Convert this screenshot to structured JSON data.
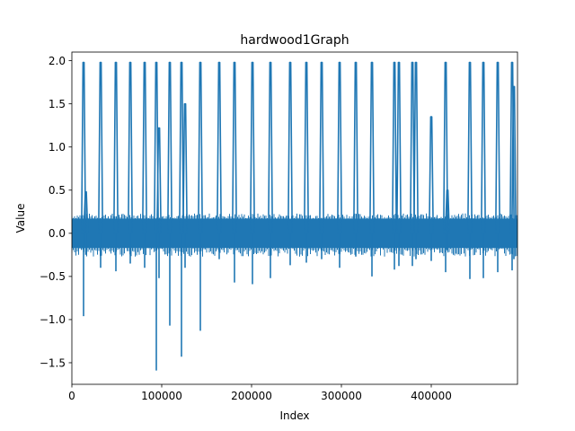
{
  "chart_data": {
    "type": "line",
    "title": "hardwood1Graph",
    "xlabel": "Index",
    "ylabel": "Value",
    "xlim": [
      0,
      496000
    ],
    "ylim": [
      -1.75,
      2.1
    ],
    "grid": false,
    "xticks": [
      {
        "value": 0,
        "label": "0"
      },
      {
        "value": 100000,
        "label": "100000"
      },
      {
        "value": 200000,
        "label": "200000"
      },
      {
        "value": 300000,
        "label": "300000"
      },
      {
        "value": 400000,
        "label": "400000"
      }
    ],
    "yticks": [
      {
        "value": -1.5,
        "label": "−1.5"
      },
      {
        "value": -1.0,
        "label": "−1.0"
      },
      {
        "value": -0.5,
        "label": "−0.5"
      },
      {
        "value": 0.0,
        "label": "0.0"
      },
      {
        "value": 0.5,
        "label": "0.5"
      },
      {
        "value": 1.0,
        "label": "1.0"
      },
      {
        "value": 1.5,
        "label": "1.5"
      },
      {
        "value": 2.0,
        "label": "2.0"
      }
    ],
    "colors": {
      "line": "#1f77b4"
    },
    "baseline_band": {
      "ymin": -0.17,
      "ymax": 0.17
    },
    "spikes": [
      {
        "x": 13000,
        "ymax": 1.98,
        "ymin": -0.96
      },
      {
        "x": 15500,
        "ymax": 0.48,
        "ymin": -0.25
      },
      {
        "x": 32000,
        "ymax": 1.98,
        "ymin": -0.4
      },
      {
        "x": 49000,
        "ymax": 1.98,
        "ymin": -0.44
      },
      {
        "x": 65000,
        "ymax": 1.98,
        "ymin": -0.35
      },
      {
        "x": 81000,
        "ymax": 1.98,
        "ymin": -0.4
      },
      {
        "x": 94000,
        "ymax": 1.98,
        "ymin": -1.59
      },
      {
        "x": 97000,
        "ymax": 1.22,
        "ymin": -0.52
      },
      {
        "x": 109000,
        "ymax": 1.98,
        "ymin": -1.07
      },
      {
        "x": 122000,
        "ymax": 1.98,
        "ymin": -1.43
      },
      {
        "x": 126000,
        "ymax": 1.5,
        "ymin": -0.4
      },
      {
        "x": 143000,
        "ymax": 1.98,
        "ymin": -1.13
      },
      {
        "x": 164000,
        "ymax": 1.98,
        "ymin": -0.3
      },
      {
        "x": 181000,
        "ymax": 1.98,
        "ymin": -0.57
      },
      {
        "x": 201000,
        "ymax": 1.98,
        "ymin": -0.59
      },
      {
        "x": 221000,
        "ymax": 1.98,
        "ymin": -0.52
      },
      {
        "x": 243000,
        "ymax": 1.98,
        "ymin": -0.37
      },
      {
        "x": 261000,
        "ymax": 1.98,
        "ymin": -0.34
      },
      {
        "x": 278000,
        "ymax": 1.98,
        "ymin": -0.3
      },
      {
        "x": 298000,
        "ymax": 1.98,
        "ymin": -0.4
      },
      {
        "x": 316000,
        "ymax": 1.98,
        "ymin": -0.27
      },
      {
        "x": 334000,
        "ymax": 1.98,
        "ymin": -0.5
      },
      {
        "x": 359000,
        "ymax": 1.98,
        "ymin": -0.42
      },
      {
        "x": 364000,
        "ymax": 1.98,
        "ymin": -0.38
      },
      {
        "x": 379000,
        "ymax": 1.98,
        "ymin": -0.38
      },
      {
        "x": 383000,
        "ymax": 1.98,
        "ymin": -0.3
      },
      {
        "x": 400000,
        "ymax": 1.35,
        "ymin": -0.32
      },
      {
        "x": 416000,
        "ymax": 1.98,
        "ymin": -0.45
      },
      {
        "x": 418000,
        "ymax": 0.5,
        "ymin": -0.2
      },
      {
        "x": 443000,
        "ymax": 1.98,
        "ymin": -0.53
      },
      {
        "x": 458000,
        "ymax": 1.98,
        "ymin": -0.52
      },
      {
        "x": 474000,
        "ymax": 1.98,
        "ymin": -0.45
      },
      {
        "x": 490000,
        "ymax": 1.98,
        "ymin": -0.43
      },
      {
        "x": 492000,
        "ymax": 1.7,
        "ymin": -0.3
      }
    ]
  }
}
